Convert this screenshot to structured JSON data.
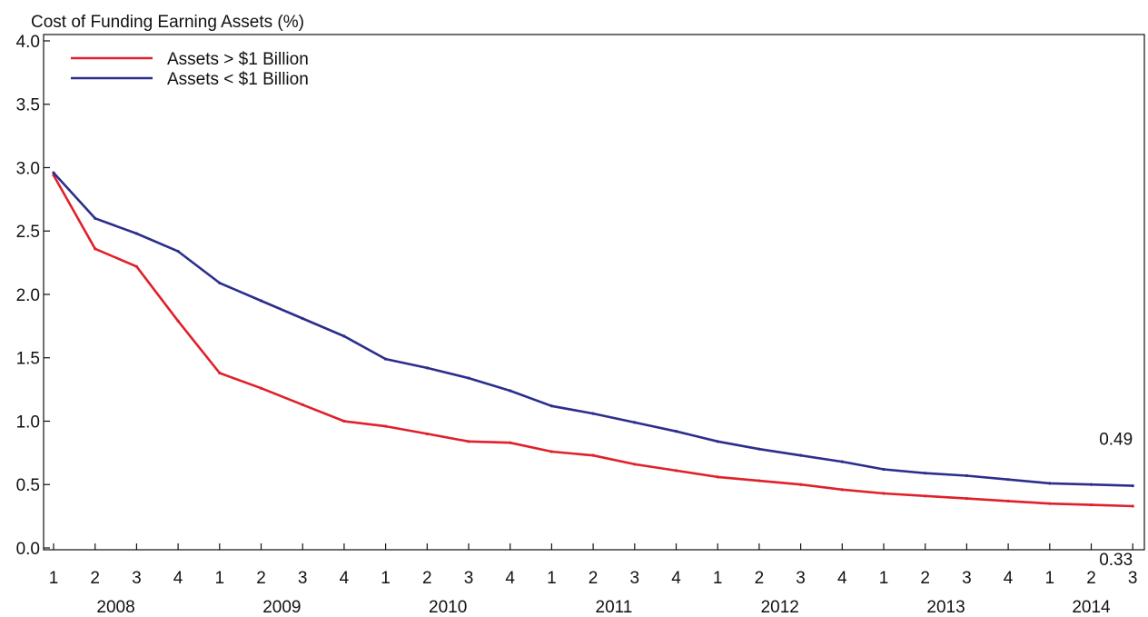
{
  "chart_data": {
    "type": "line",
    "title": "Cost of Funding Earning Assets (%)",
    "x": [
      "2008 Q1",
      "2008 Q2",
      "2008 Q3",
      "2008 Q4",
      "2009 Q1",
      "2009 Q2",
      "2009 Q3",
      "2009 Q4",
      "2010 Q1",
      "2010 Q2",
      "2010 Q3",
      "2010 Q4",
      "2011 Q1",
      "2011 Q2",
      "2011 Q3",
      "2011 Q4",
      "2012 Q1",
      "2012 Q2",
      "2012 Q3",
      "2012 Q4",
      "2013 Q1",
      "2013 Q2",
      "2013 Q3",
      "2013 Q4",
      "2014 Q1",
      "2014 Q2",
      "2014 Q3"
    ],
    "quarter_labels": [
      "1",
      "2",
      "3",
      "4",
      "1",
      "2",
      "3",
      "4",
      "1",
      "2",
      "3",
      "4",
      "1",
      "2",
      "3",
      "4",
      "1",
      "2",
      "3",
      "4",
      "1",
      "2",
      "3",
      "4",
      "1",
      "2",
      "3"
    ],
    "years": [
      {
        "label": "2008",
        "start": 0,
        "end": 3
      },
      {
        "label": "2009",
        "start": 4,
        "end": 7
      },
      {
        "label": "2010",
        "start": 8,
        "end": 11
      },
      {
        "label": "2011",
        "start": 12,
        "end": 15
      },
      {
        "label": "2012",
        "start": 16,
        "end": 19
      },
      {
        "label": "2013",
        "start": 20,
        "end": 23
      },
      {
        "label": "2014",
        "start": 24,
        "end": 26
      }
    ],
    "series": [
      {
        "name": "Assets > $1 Billion",
        "color": "#e0202a",
        "values": [
          2.94,
          2.36,
          2.22,
          1.79,
          1.38,
          1.26,
          1.13,
          1.0,
          0.96,
          0.9,
          0.84,
          0.83,
          0.76,
          0.73,
          0.66,
          0.61,
          0.56,
          0.53,
          0.5,
          0.46,
          0.43,
          0.41,
          0.39,
          0.37,
          0.35,
          0.34,
          0.33
        ],
        "end_label": "0.33"
      },
      {
        "name": "Assets < $1 Billion",
        "color": "#2b2e8c",
        "values": [
          2.96,
          2.6,
          2.48,
          2.34,
          2.09,
          1.95,
          1.81,
          1.67,
          1.49,
          1.42,
          1.34,
          1.24,
          1.12,
          1.06,
          0.99,
          0.92,
          0.84,
          0.78,
          0.73,
          0.68,
          0.62,
          0.59,
          0.57,
          0.54,
          0.51,
          0.5,
          0.49
        ],
        "end_label": "0.49"
      }
    ],
    "yticks": [
      "0.0",
      "0.5",
      "1.0",
      "1.5",
      "2.0",
      "2.5",
      "3.0",
      "3.5",
      "4.0"
    ],
    "ylim": [
      0,
      4.05
    ],
    "grid": false,
    "legend_position": "top-left"
  }
}
